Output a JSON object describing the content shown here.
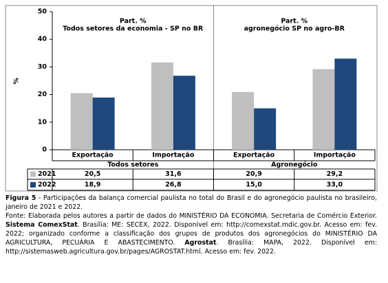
{
  "chart_data": {
    "type": "bar",
    "groups": [
      {
        "name": "Todos setores",
        "title": [
          "Part. %",
          "Todos setores da economia - SP no BR"
        ]
      },
      {
        "name": "Agronegócio",
        "title": [
          "Part. %",
          "agronegócio SP no agro-BR"
        ]
      }
    ],
    "categories": [
      "Exportação",
      "Importação",
      "Exportação",
      "Importação"
    ],
    "series": [
      {
        "name": "2021",
        "color": "#bfbfbf",
        "values": [
          20.5,
          31.6,
          20.9,
          29.2
        ],
        "value_labels": [
          "20,5",
          "31,6",
          "20,9",
          "29,2"
        ]
      },
      {
        "name": "2022",
        "color": "#1f497d",
        "values": [
          18.9,
          26.8,
          15.0,
          33.0
        ],
        "value_labels": [
          "18,9",
          "26,8",
          "15,0",
          "33,0"
        ]
      }
    ],
    "ylabel": "%",
    "ylim": [
      0,
      50
    ],
    "yticks": [
      0,
      10,
      20,
      30,
      40,
      50
    ]
  },
  "caption": {
    "label": "Figura 5",
    "text": " - Participações da balança comercial paulista no total do Brasil e do agronegócio paulista no brasileiro, janeiro de 2021 e 2022."
  },
  "source": [
    {
      "text": "Fonte: Elaborada pelos autores a partir de dados do MINISTÉRIO DA ECONOMIA. Secretaria de Comércio Exterior. ",
      "bold": false
    },
    {
      "text": "Sistema ComexStat",
      "bold": true
    },
    {
      "text": ". Brasília: ME: SECEX, 2022. Disponível em: http://comexstat.mdic.gov.br. Acesso em: fev. 2022; organizado conforme a classificação dos grupos de produtos dos agronegócios do MINISTÉRIO DA AGRICULTURA, PECUÁRIA E ABASTECIMENTO. ",
      "bold": false
    },
    {
      "text": "Agrostat",
      "bold": true
    },
    {
      "text": ". Brasília: MAPA, 2022. Disponível em: http://sistemasweb.agricultura.gov.br/pages/AGROSTAT.html. Acesso em: fev. 2022.",
      "bold": false
    }
  ]
}
